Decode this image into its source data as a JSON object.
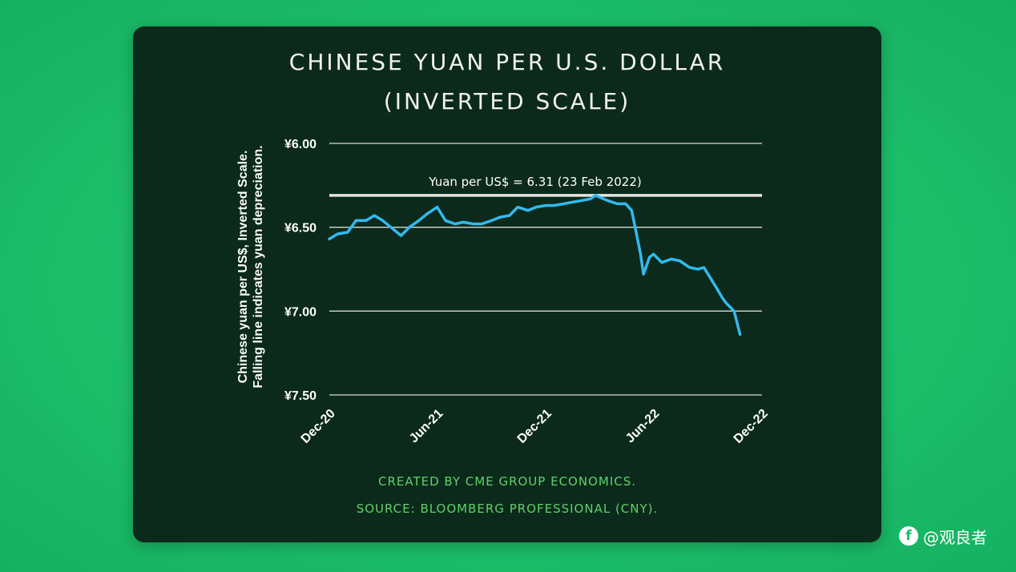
{
  "title_line1": "CHINESE YUAN PER U.S. DOLLAR",
  "title_line2": "(INVERTED SCALE)",
  "footer_created": "CREATED BY CME GROUP ECONOMICS.",
  "footer_source": "SOURCE: BLOOMBERG PROFESSIONAL (CNY).",
  "watermark": {
    "icon": "f",
    "text": "@观良者"
  },
  "colors": {
    "background": "#1cbd69",
    "card": "#0b2a1b",
    "line": "#33b9ee",
    "reference_line": "#e6e6e0",
    "footer_text": "#5fd16a"
  },
  "chart_data": {
    "type": "line",
    "title": "CHINESE YUAN PER U.S. DOLLAR (INVERTED SCALE)",
    "ylabel_line1": "Chinese yuan per US$, Inverted Scale.",
    "ylabel_line2": "Falling line indicates yuan depreciation.",
    "y_inverted": true,
    "ylim": [
      6.0,
      7.5
    ],
    "yticks": [
      6.0,
      6.5,
      7.0,
      7.5
    ],
    "ytick_labels": [
      "¥6.00",
      "¥6.50",
      "¥7.00",
      "¥7.50"
    ],
    "xlim": [
      "2020-12-01",
      "2022-12-01"
    ],
    "xticks": [
      "2020-12-01",
      "2021-06-01",
      "2021-12-01",
      "2022-06-01",
      "2022-12-01"
    ],
    "xtick_labels": [
      "Dec-20",
      "Jun-21",
      "Dec-21",
      "Jun-22",
      "Dec-22"
    ],
    "grid": true,
    "reference_line": {
      "value": 6.31,
      "label": "Yuan per US$ = 6.31 (23 Feb 2022)"
    },
    "series": [
      {
        "x": [
          "2020-12-01",
          "2020-12-15",
          "2021-01-01",
          "2021-01-15",
          "2021-02-01",
          "2021-02-15",
          "2021-03-01",
          "2021-03-15",
          "2021-04-01",
          "2021-04-15",
          "2021-05-01",
          "2021-05-15",
          "2021-06-01",
          "2021-06-15",
          "2021-07-01",
          "2021-07-15",
          "2021-08-01",
          "2021-08-15",
          "2021-09-01",
          "2021-09-15",
          "2021-10-01",
          "2021-10-15",
          "2021-11-01",
          "2021-11-15",
          "2021-12-01",
          "2021-12-15",
          "2022-01-01",
          "2022-01-15",
          "2022-02-01",
          "2022-02-15",
          "2022-02-23",
          "2022-03-15",
          "2022-04-01",
          "2022-04-15",
          "2022-04-25",
          "2022-05-01",
          "2022-05-10",
          "2022-05-15",
          "2022-05-25",
          "2022-06-01",
          "2022-06-15",
          "2022-07-01",
          "2022-07-15",
          "2022-08-01",
          "2022-08-15",
          "2022-08-25",
          "2022-09-01",
          "2022-09-15",
          "2022-09-25",
          "2022-10-01",
          "2022-10-15",
          "2022-10-25"
        ],
        "y": [
          6.57,
          6.54,
          6.53,
          6.46,
          6.46,
          6.43,
          6.46,
          6.5,
          6.55,
          6.5,
          6.46,
          6.42,
          6.38,
          6.46,
          6.48,
          6.47,
          6.48,
          6.48,
          6.46,
          6.44,
          6.43,
          6.38,
          6.4,
          6.38,
          6.37,
          6.37,
          6.36,
          6.35,
          6.34,
          6.33,
          6.31,
          6.34,
          6.36,
          6.36,
          6.4,
          6.5,
          6.66,
          6.78,
          6.68,
          6.66,
          6.71,
          6.69,
          6.7,
          6.74,
          6.75,
          6.74,
          6.78,
          6.86,
          6.92,
          6.95,
          7.0,
          7.14
        ]
      }
    ]
  }
}
